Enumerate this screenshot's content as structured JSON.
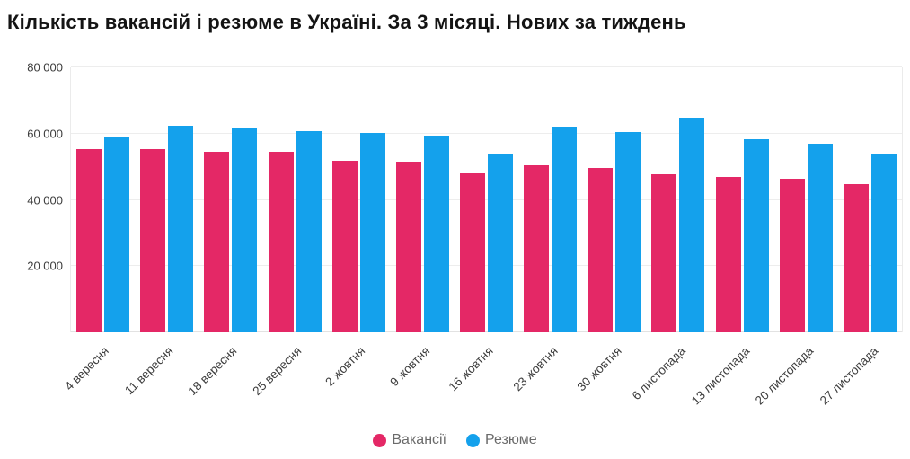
{
  "chart_data": {
    "type": "bar",
    "orientation": "vertical",
    "grouped": true,
    "title": "Кількість вакансій і резюме в Україні. За 3 місяці. Нових за тиждень",
    "categories": [
      "4 вересня",
      "11 вересня",
      "18 вересня",
      "25 вересня",
      "2 жовтня",
      "9 жовтня",
      "16 жовтня",
      "23 жовтня",
      "30 жовтня",
      "6 листопада",
      "13 листопада",
      "20 листопада",
      "27 листопада"
    ],
    "series": [
      {
        "key": "vacancies",
        "name": "Вакансії",
        "color": "#e42866",
        "values": [
          55300,
          55300,
          54400,
          54400,
          51900,
          51500,
          48000,
          50500,
          49500,
          47800,
          47000,
          46300,
          44700
        ]
      },
      {
        "key": "resumes",
        "name": "Резюме",
        "color": "#14a1ec",
        "values": [
          58900,
          62400,
          61700,
          60800,
          60200,
          59500,
          54100,
          62100,
          60400,
          64900,
          58400,
          56900,
          53900
        ]
      }
    ],
    "ylim": [
      0,
      80000
    ],
    "yticks": [
      {
        "value": 20000,
        "label": "20 000"
      },
      {
        "value": 40000,
        "label": "40 000"
      },
      {
        "value": 60000,
        "label": "60 000"
      },
      {
        "value": 80000,
        "label": "80 000"
      }
    ],
    "grid": "horizontal",
    "legend_position": "bottom-center"
  }
}
